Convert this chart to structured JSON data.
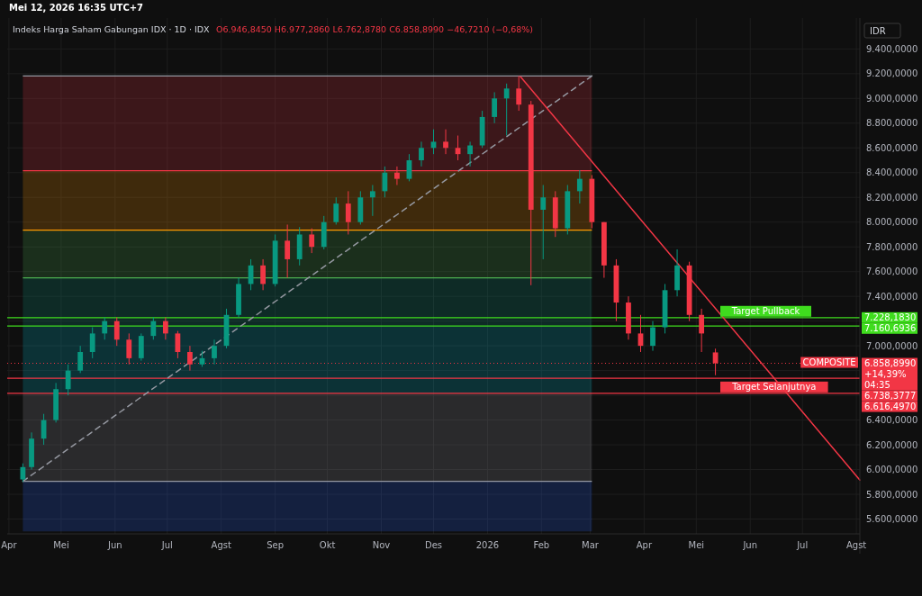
{
  "chart_data": {
    "type": "candlestick",
    "title": "Indeks Harga Saham Gabungan IDX · 1D · IDX",
    "subtitle": "O6.946,8450 H6.977,2860 L6.762,8780 C6.858,8990 −46,7210 (−0,68%)",
    "ylabel": "IDR",
    "annotations": [
      "Mei 12, 2026 16:35 UTC+7",
      "7.228,1830",
      "7.160,6936",
      "6.858,8990",
      "+14,39%",
      "04:35",
      "6.738,3777",
      "6.616,4970"
    ],
    "x": [
      "2025-04-09",
      "2025-04-14",
      "2025-04-21",
      "2025-04-28",
      "2025-05-05",
      "2025-05-12",
      "2025-05-19",
      "2025-05-26",
      "2025-06-02",
      "2025-06-09",
      "2025-06-16",
      "2025-06-23",
      "2025-06-30",
      "2025-07-07",
      "2025-07-14",
      "2025-07-21",
      "2025-07-28",
      "2025-08-04",
      "2025-08-11",
      "2025-08-18",
      "2025-08-25",
      "2025-09-01",
      "2025-09-08",
      "2025-09-15",
      "2025-09-22",
      "2025-09-29",
      "2025-10-06",
      "2025-10-13",
      "2025-10-20",
      "2025-10-27",
      "2025-11-03",
      "2025-11-10",
      "2025-11-17",
      "2025-11-24",
      "2025-12-01",
      "2025-12-08",
      "2025-12-15",
      "2025-12-22",
      "2025-12-29",
      "2026-01-05",
      "2026-01-12",
      "2026-01-19",
      "2026-01-26",
      "2026-02-02",
      "2026-02-09",
      "2026-02-16",
      "2026-02-23",
      "2026-03-02",
      "2026-03-09",
      "2026-03-16",
      "2026-03-23",
      "2026-03-30",
      "2026-04-06",
      "2026-04-13",
      "2026-04-20",
      "2026-04-27",
      "2026-05-04",
      "2026-05-12"
    ],
    "ohlc": [
      [
        5920,
        6050,
        5900,
        6020
      ],
      [
        6020,
        6300,
        6000,
        6250
      ],
      [
        6250,
        6450,
        6200,
        6400
      ],
      [
        6400,
        6700,
        6380,
        6650
      ],
      [
        6650,
        6850,
        6600,
        6800
      ],
      [
        6800,
        7000,
        6780,
        6950
      ],
      [
        6950,
        7150,
        6900,
        7100
      ],
      [
        7100,
        7230,
        7050,
        7200
      ],
      [
        7200,
        7230,
        7000,
        7050
      ],
      [
        7050,
        7100,
        6850,
        6900
      ],
      [
        6900,
        7100,
        6880,
        7080
      ],
      [
        7080,
        7230,
        7050,
        7200
      ],
      [
        7200,
        7230,
        7050,
        7100
      ],
      [
        7100,
        7120,
        6900,
        6950
      ],
      [
        6950,
        7000,
        6800,
        6850
      ],
      [
        6850,
        6960,
        6830,
        6900
      ],
      [
        6900,
        7050,
        6850,
        7000
      ],
      [
        7000,
        7300,
        6980,
        7250
      ],
      [
        7250,
        7550,
        7230,
        7500
      ],
      [
        7500,
        7700,
        7450,
        7650
      ],
      [
        7650,
        7700,
        7450,
        7500
      ],
      [
        7500,
        7900,
        7480,
        7850
      ],
      [
        7850,
        7980,
        7550,
        7700
      ],
      [
        7700,
        7960,
        7650,
        7900
      ],
      [
        7900,
        7950,
        7750,
        7800
      ],
      [
        7800,
        8050,
        7780,
        8000
      ],
      [
        8000,
        8200,
        7980,
        8150
      ],
      [
        8150,
        8250,
        7900,
        8000
      ],
      [
        8000,
        8250,
        7980,
        8200
      ],
      [
        8200,
        8300,
        8050,
        8250
      ],
      [
        8250,
        8450,
        8200,
        8400
      ],
      [
        8400,
        8450,
        8300,
        8350
      ],
      [
        8350,
        8550,
        8330,
        8500
      ],
      [
        8500,
        8650,
        8450,
        8600
      ],
      [
        8600,
        8750,
        8550,
        8650
      ],
      [
        8650,
        8750,
        8550,
        8600
      ],
      [
        8600,
        8700,
        8500,
        8550
      ],
      [
        8550,
        8650,
        8450,
        8620
      ],
      [
        8620,
        8900,
        8600,
        8850
      ],
      [
        8850,
        9050,
        8800,
        9000
      ],
      [
        9000,
        9120,
        8700,
        9080
      ],
      [
        9080,
        9182,
        8900,
        8950
      ],
      [
        8950,
        8980,
        7490,
        8100
      ],
      [
        8100,
        8300,
        7700,
        8200
      ],
      [
        8200,
        8250,
        7880,
        7950
      ],
      [
        7950,
        8300,
        7900,
        8250
      ],
      [
        8250,
        8420,
        8150,
        8350
      ],
      [
        8350,
        8380,
        7950,
        8000
      ],
      [
        8000,
        8000,
        7550,
        7650
      ],
      [
        7650,
        7700,
        7200,
        7350
      ],
      [
        7350,
        7400,
        7050,
        7100
      ],
      [
        7100,
        7250,
        6950,
        7000
      ],
      [
        7000,
        7200,
        6960,
        7150
      ],
      [
        7150,
        7500,
        7100,
        7450
      ],
      [
        7450,
        7780,
        7400,
        7650
      ],
      [
        7650,
        7680,
        7200,
        7250
      ],
      [
        7250,
        7300,
        6950,
        7100
      ],
      [
        6946.845,
        6977.286,
        6762.878,
        6858.899
      ]
    ],
    "series": [
      {
        "type": "line",
        "color": "#9598a1",
        "line_style": "dashed",
        "x": [
          "2025-04-09",
          "2026-03-02"
        ],
        "values": [
          5905,
          9182
        ]
      },
      {
        "type": "line",
        "color": "#f23645",
        "line_style": "solid",
        "x": [
          "2026-01-20",
          "2026-08-03"
        ],
        "values": [
          9175,
          5915
        ]
      }
    ],
    "bands": [
      {
        "axis": "y",
        "from": 8415,
        "to": 9182,
        "color": "#f23645"
      },
      {
        "axis": "y",
        "from": 7935,
        "to": 8415,
        "color": "#ff9800"
      },
      {
        "axis": "y",
        "from": 7549,
        "to": 7935,
        "color": "#4caf50"
      },
      {
        "axis": "y",
        "from": 7160,
        "to": 7549,
        "color": "#089981"
      },
      {
        "axis": "y",
        "from": 6616,
        "to": 7160,
        "color": "#00bcd4"
      },
      {
        "axis": "y",
        "from": 5905,
        "to": 6616,
        "color": "#9598a1"
      },
      {
        "axis": "y",
        "from": 5500,
        "to": 5905,
        "color": "#2962ff"
      }
    ],
    "ref_lines": [
      {
        "axis": "y",
        "value": 9182,
        "label": null,
        "color": "#9598a1",
        "line_style": "solid"
      },
      {
        "axis": "y",
        "value": 8415,
        "label": null,
        "color": "#f23645",
        "line_style": "solid"
      },
      {
        "axis": "y",
        "value": 7935,
        "label": null,
        "color": "#ff9800",
        "line_style": "solid"
      },
      {
        "axis": "y",
        "value": 7549,
        "label": null,
        "color": "#4caf50",
        "line_style": "solid"
      },
      {
        "axis": "y",
        "value": 5905,
        "label": null,
        "color": "#9598a1",
        "line_style": "solid"
      },
      {
        "axis": "y",
        "value": 7228.183,
        "label": "Target Pullback",
        "color": "#3fdc1e",
        "line_style": "solid"
      },
      {
        "axis": "y",
        "value": 7160.6936,
        "label": null,
        "color": "#3fdc1e",
        "line_style": "solid"
      },
      {
        "axis": "y",
        "value": 6858.899,
        "label": "COMPOSITE",
        "color": "#f23645",
        "line_style": "dotted"
      },
      {
        "axis": "y",
        "value": 6738.3777,
        "label": null,
        "color": "#f23645",
        "line_style": "solid"
      },
      {
        "axis": "y",
        "value": 6616.497,
        "label": "Target Selanjutnya",
        "color": "#f23645",
        "line_style": "solid"
      }
    ],
    "xlim": [
      "2025-03-31",
      "2026-08-03"
    ],
    "xticks": [
      {
        "value": "2025-04-01",
        "label": "Apr"
      },
      {
        "value": "2025-05-01",
        "label": "Mei"
      },
      {
        "value": "2025-06-01",
        "label": "Jun"
      },
      {
        "value": "2025-07-01",
        "label": "Jul"
      },
      {
        "value": "2025-08-01",
        "label": "Agst"
      },
      {
        "value": "2025-09-01",
        "label": "Sep"
      },
      {
        "value": "2025-10-01",
        "label": "Okt"
      },
      {
        "value": "2025-11-01",
        "label": "Nov"
      },
      {
        "value": "2025-12-01",
        "label": "Des"
      },
      {
        "value": "2026-01-01",
        "label": "2026"
      },
      {
        "value": "2026-02-01",
        "label": "Feb"
      },
      {
        "value": "2026-03-01",
        "label": "Mar"
      },
      {
        "value": "2026-04-01",
        "label": "Apr"
      },
      {
        "value": "2026-05-01",
        "label": "Mei"
      },
      {
        "value": "2026-06-01",
        "label": "Jun"
      },
      {
        "value": "2026-07-01",
        "label": "Jul"
      },
      {
        "value": "2026-08-01",
        "label": "Agst"
      }
    ],
    "ylim": [
      5480,
      9650
    ],
    "yticks": [
      {
        "value": 5600,
        "label": "5.600,0000"
      },
      {
        "value": 5800,
        "label": "5.800,0000"
      },
      {
        "value": 6000,
        "label": "6.000,0000"
      },
      {
        "value": 6200,
        "label": "6.200,0000"
      },
      {
        "value": 6400,
        "label": "6.400,0000"
      },
      {
        "value": 6600,
        "label": null
      },
      {
        "value": 6800,
        "label": null
      },
      {
        "value": 7000,
        "label": "7.000,0000"
      },
      {
        "value": 7200,
        "label": null
      },
      {
        "value": 7400,
        "label": "7.400,0000"
      },
      {
        "value": 7600,
        "label": "7.600,0000"
      },
      {
        "value": 7800,
        "label": "7.800,0000"
      },
      {
        "value": 8000,
        "label": "8.000,0000"
      },
      {
        "value": 8200,
        "label": "8.200,0000"
      },
      {
        "value": 8400,
        "label": "8.400,0000"
      },
      {
        "value": 8600,
        "label": "8.600,0000"
      },
      {
        "value": 8800,
        "label": "8.800,0000"
      },
      {
        "value": 9000,
        "label": "9.000,0000"
      },
      {
        "value": 9200,
        "label": "9.200,0000"
      },
      {
        "value": 9400,
        "label": "9.400,0000"
      }
    ],
    "grid": true
  }
}
